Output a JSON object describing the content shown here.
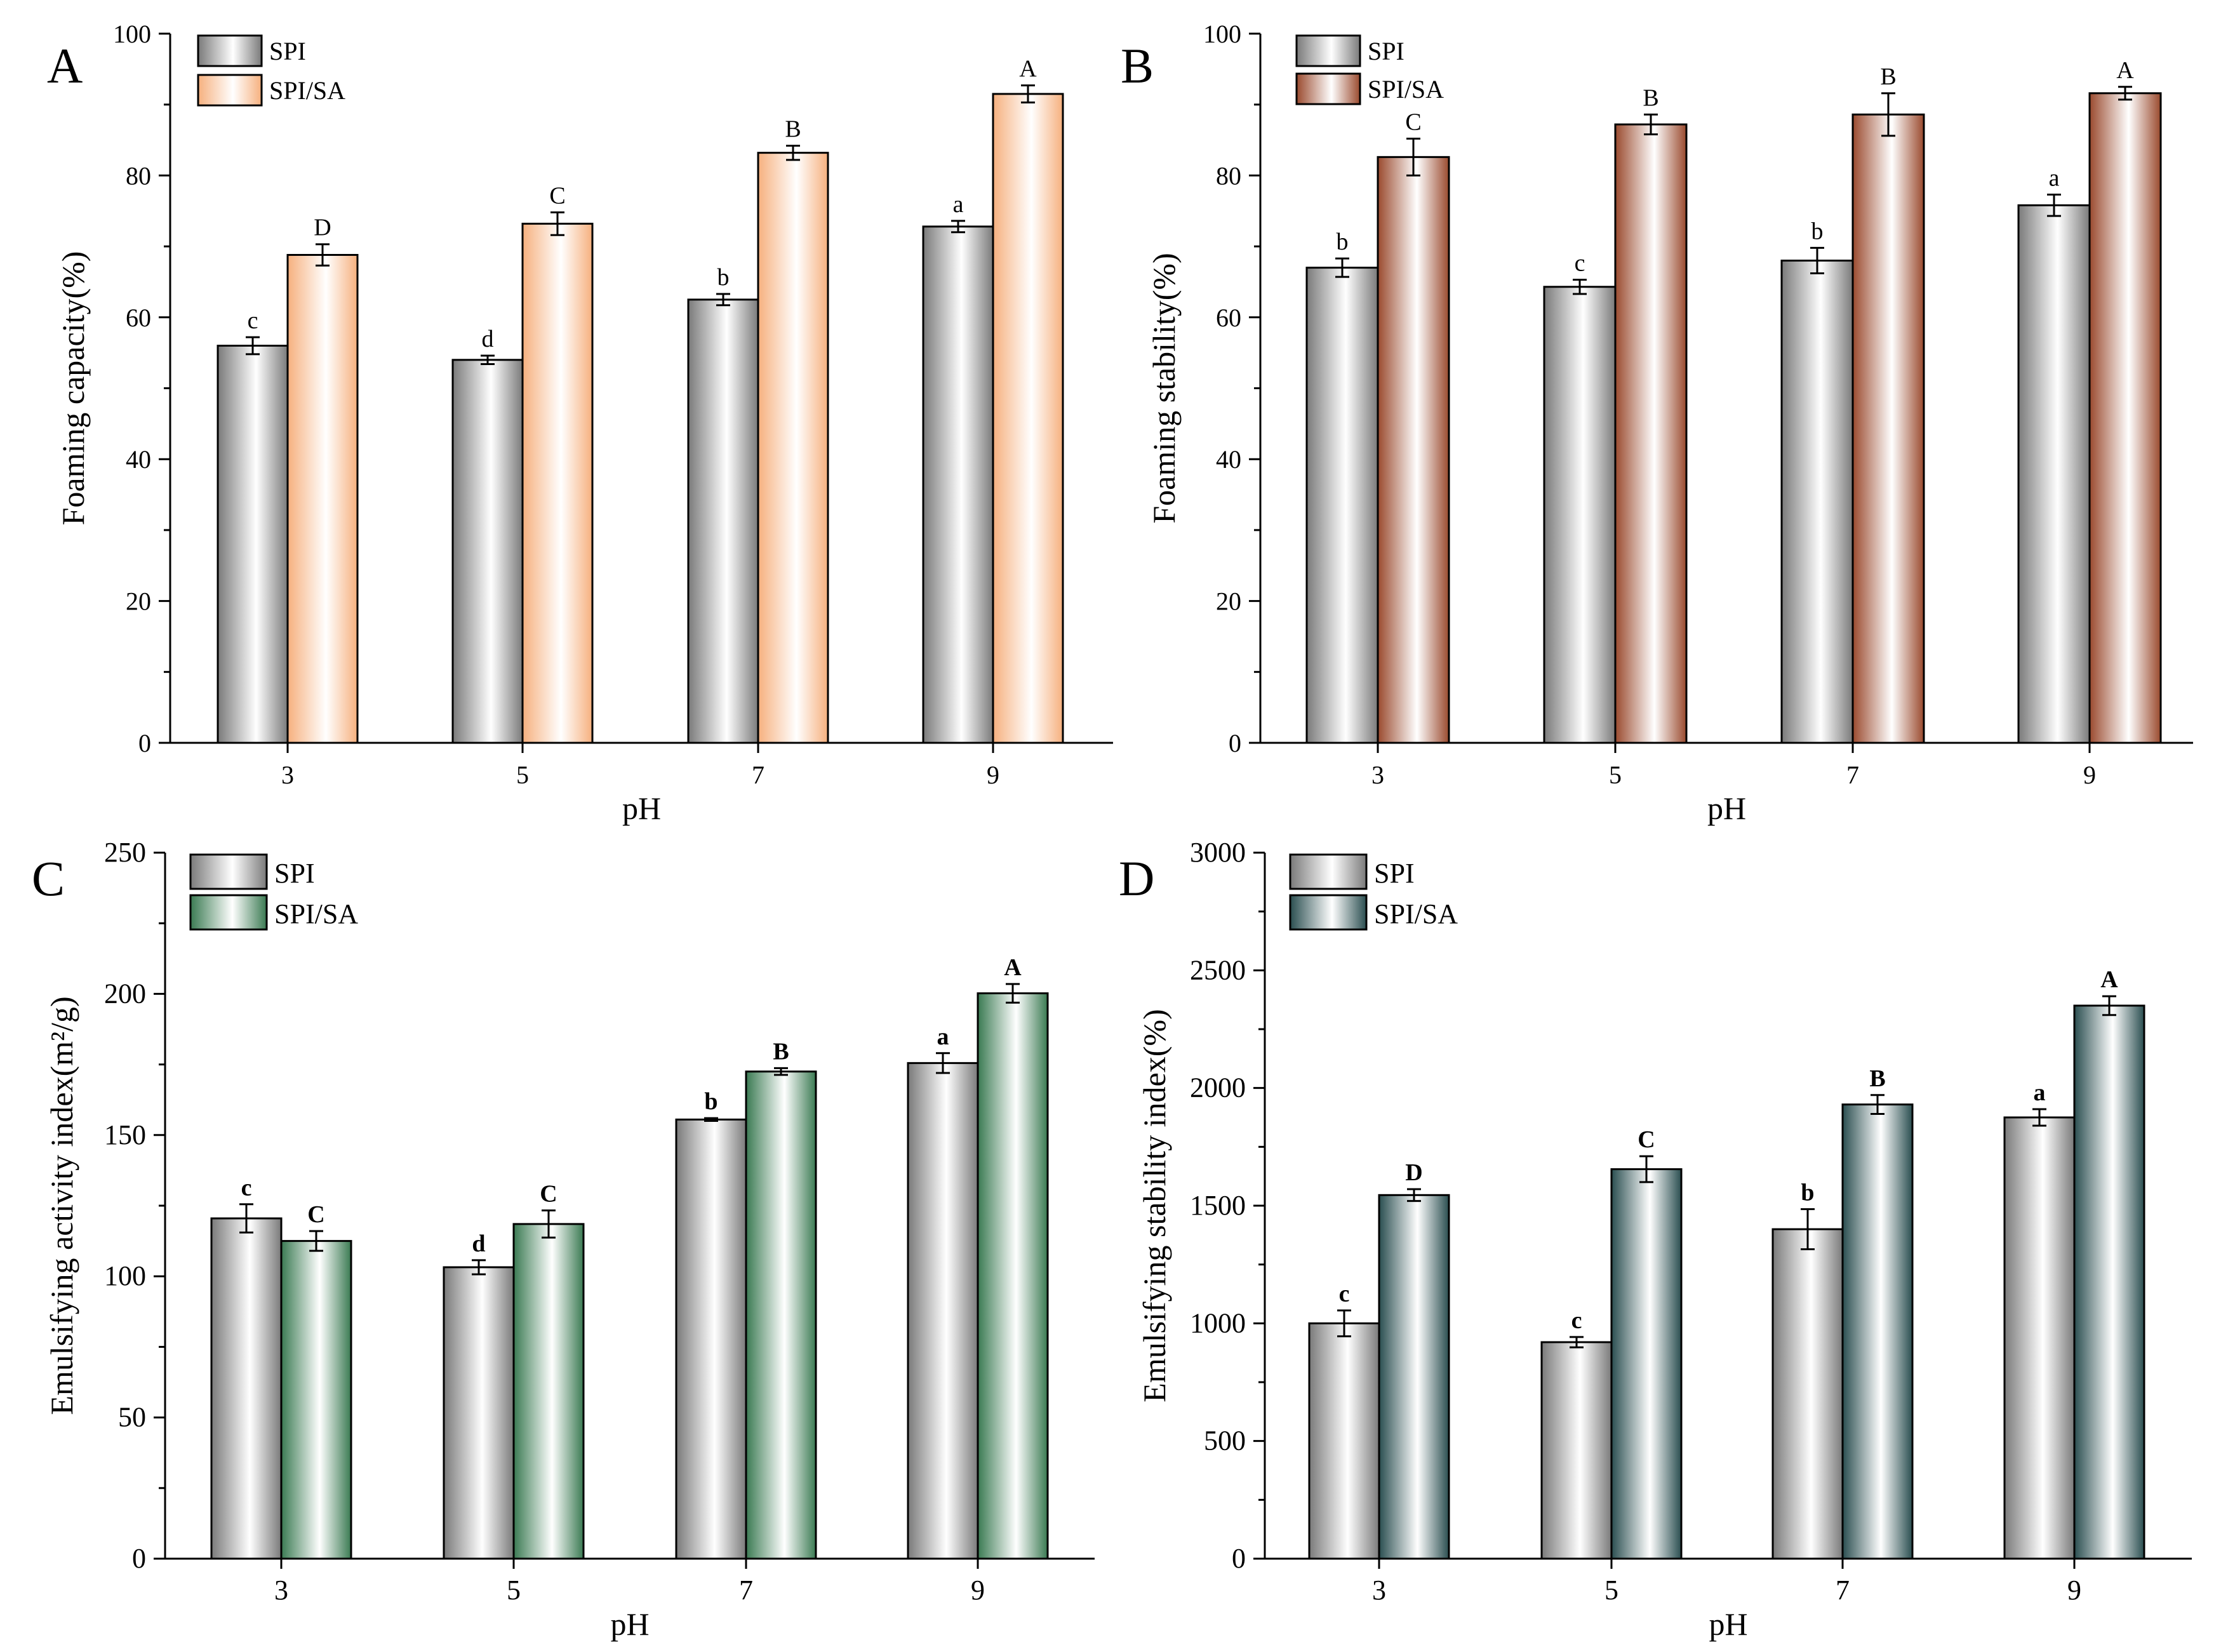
{
  "chart_data": [
    {
      "panel": "A",
      "type": "bar",
      "categories": [
        "3",
        "5",
        "7",
        "9"
      ],
      "xlabel": "pH",
      "ylabel": "Foaming capacity(%)",
      "ylim": [
        0,
        100
      ],
      "yticks": [
        "0",
        "20",
        "40",
        "60",
        "80",
        "100"
      ],
      "series": [
        {
          "name": "SPI",
          "color": "#7a7a7a",
          "values": [
            56,
            54,
            62.5,
            72.8
          ],
          "errors": [
            1.2,
            0.6,
            0.8,
            0.8
          ],
          "labels": [
            "c",
            "d",
            "b",
            "a"
          ]
        },
        {
          "name": "SPI/SA",
          "color": "#f6b07e",
          "values": [
            68.8,
            73.2,
            83.2,
            91.5
          ],
          "errors": [
            1.5,
            1.6,
            1.0,
            1.2
          ],
          "labels": [
            "D",
            "C",
            "B",
            "A"
          ]
        }
      ]
    },
    {
      "panel": "B",
      "type": "bar",
      "categories": [
        "3",
        "5",
        "7",
        "9"
      ],
      "xlabel": "pH",
      "ylabel": "Foaming stability(%)",
      "ylim": [
        0,
        100
      ],
      "yticks": [
        "0",
        "20",
        "40",
        "60",
        "80",
        "100"
      ],
      "series": [
        {
          "name": "SPI",
          "color": "#7a7a7a",
          "values": [
            67,
            64.3,
            68,
            75.8
          ],
          "errors": [
            1.3,
            1.0,
            1.8,
            1.5
          ],
          "labels": [
            "b",
            "c",
            "b",
            "a"
          ]
        },
        {
          "name": "SPI/SA",
          "color": "#9a4a2e",
          "values": [
            82.6,
            87.2,
            88.6,
            91.6
          ],
          "errors": [
            2.6,
            1.4,
            3.0,
            0.9
          ],
          "labels": [
            "C",
            "B",
            "B",
            "A"
          ]
        }
      ]
    },
    {
      "panel": "C",
      "type": "bar",
      "categories": [
        "3",
        "5",
        "7",
        "9"
      ],
      "xlabel": "pH",
      "ylabel": "Emulsifying activity index(m²/g)",
      "ylim": [
        0,
        250
      ],
      "yticks": [
        "0",
        "50",
        "100",
        "150",
        "200",
        "250"
      ],
      "series": [
        {
          "name": "SPI",
          "color": "#7a7a7a",
          "values": [
            120.5,
            103.2,
            155.5,
            175.5
          ],
          "errors": [
            5.0,
            2.5,
            0.5,
            3.5
          ],
          "labels": [
            "c",
            "d",
            "b",
            "a"
          ]
        },
        {
          "name": "SPI/SA",
          "color": "#3a7a52",
          "values": [
            112.5,
            118.5,
            172.5,
            200.2
          ],
          "errors": [
            3.5,
            4.8,
            1.2,
            3.3
          ],
          "labels": [
            "C",
            "C",
            "B",
            "A"
          ]
        }
      ]
    },
    {
      "panel": "D",
      "type": "bar",
      "categories": [
        "3",
        "5",
        "7",
        "9"
      ],
      "xlabel": "pH",
      "ylabel": "Emulsifying stability index(%)",
      "ylim": [
        0,
        3000
      ],
      "yticks": [
        "0",
        "500",
        "1000",
        "1500",
        "2000",
        "2500",
        "3000"
      ],
      "series": [
        {
          "name": "SPI",
          "color": "#7a7a7a",
          "values": [
            1000,
            920,
            1400,
            1875
          ],
          "errors": [
            55,
            22,
            85,
            35
          ],
          "labels": [
            "c",
            "c",
            "b",
            "a"
          ]
        },
        {
          "name": "SPI/SA",
          "color": "#2a4e50",
          "values": [
            1545,
            1655,
            1930,
            2350
          ],
          "errors": [
            25,
            55,
            40,
            40
          ],
          "labels": [
            "D",
            "C",
            "B",
            "A"
          ]
        }
      ]
    }
  ]
}
